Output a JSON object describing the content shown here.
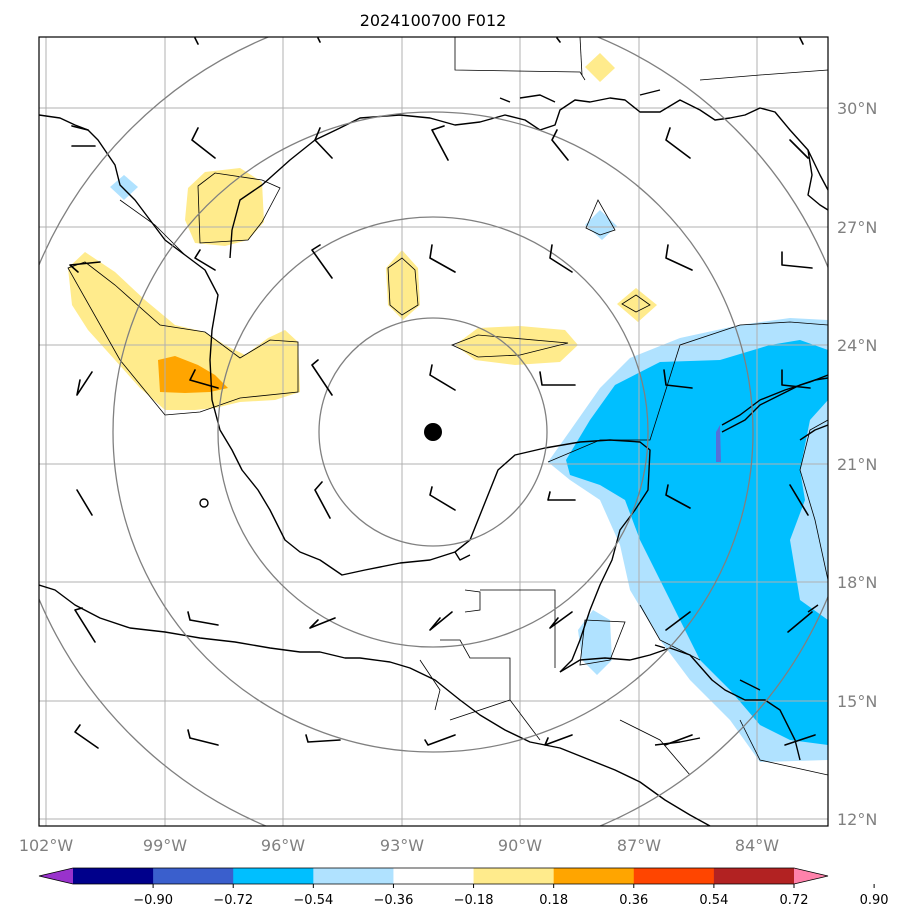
{
  "title": "2024100700 F012",
  "map": {
    "lon_range": [
      -102.2,
      -82.3
    ],
    "lat_range": [
      11.8,
      31.8
    ],
    "grid_lons": [
      -102,
      -99,
      -96,
      -93,
      -90,
      -87,
      -84
    ],
    "grid_lats": [
      12,
      15,
      18,
      21,
      24,
      27,
      30
    ],
    "lon_labels": [
      "102°W",
      "99°W",
      "96°W",
      "93°W",
      "90°W",
      "87°W",
      "84°W"
    ],
    "lat_labels": [
      "12°N",
      "15°N",
      "18°N",
      "21°N",
      "24°N",
      "27°N",
      "30°N"
    ],
    "storm_center": {
      "lon": -92.3,
      "lat": 21.8
    },
    "range_rings_deg": [
      3,
      6,
      9,
      12
    ]
  },
  "colorbar": {
    "levels": [
      "−0.90",
      "−0.72",
      "−0.54",
      "−0.36",
      "−0.18",
      "0.18",
      "0.36",
      "0.54",
      "0.72",
      "0.90"
    ],
    "colors": [
      "#9932cc",
      "#00008b",
      "#3a5fcd",
      "#00bfff",
      "#b0e2ff",
      "#ffffff",
      "#ffeb8c",
      "#ffa500",
      "#ff4500",
      "#b22222",
      "#ff82ab"
    ]
  },
  "fields": {
    "colors": {
      "light_blue": "#b0e2ff",
      "blue": "#00bfff",
      "yellow": "#ffeb8c",
      "orange": "#ffa500"
    }
  }
}
